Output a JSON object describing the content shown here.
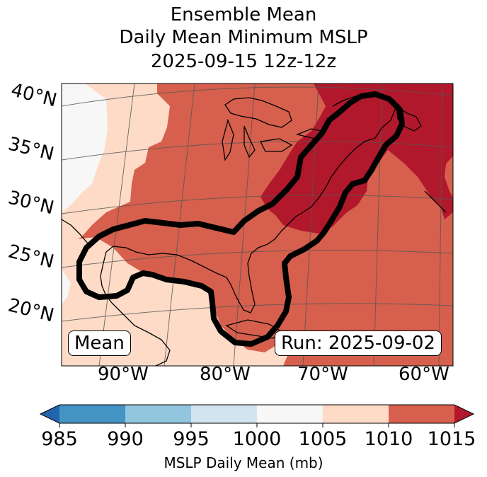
{
  "title": {
    "line1": "Ensemble Mean",
    "line2": "Daily Mean Minimum MSLP",
    "line3": "2025-09-15 12z-12z"
  },
  "latitude_labels": [
    "40°N",
    "35°N",
    "30°N",
    "25°N",
    "20°N"
  ],
  "longitude_labels": [
    "90°W",
    "80°W",
    "70°W",
    "60°W"
  ],
  "mean_label": "Mean",
  "run_label": "Run: 2025-09-02",
  "colorbar": {
    "ticks": [
      "985",
      "990",
      "995",
      "1000",
      "1005",
      "1010",
      "1015"
    ],
    "label": "MSLP Daily Mean (mb)",
    "colors": [
      "#2166ac",
      "#4393c3",
      "#92c5de",
      "#d1e5f0",
      "#f7f7f7",
      "#fddbc7",
      "#d6604d",
      "#b2182b"
    ]
  },
  "map_colors": {
    "c1000": "#f7f7f7",
    "c1005": "#fddbc7",
    "c1010": "#d6604d",
    "c1015": "#b2182b"
  }
}
